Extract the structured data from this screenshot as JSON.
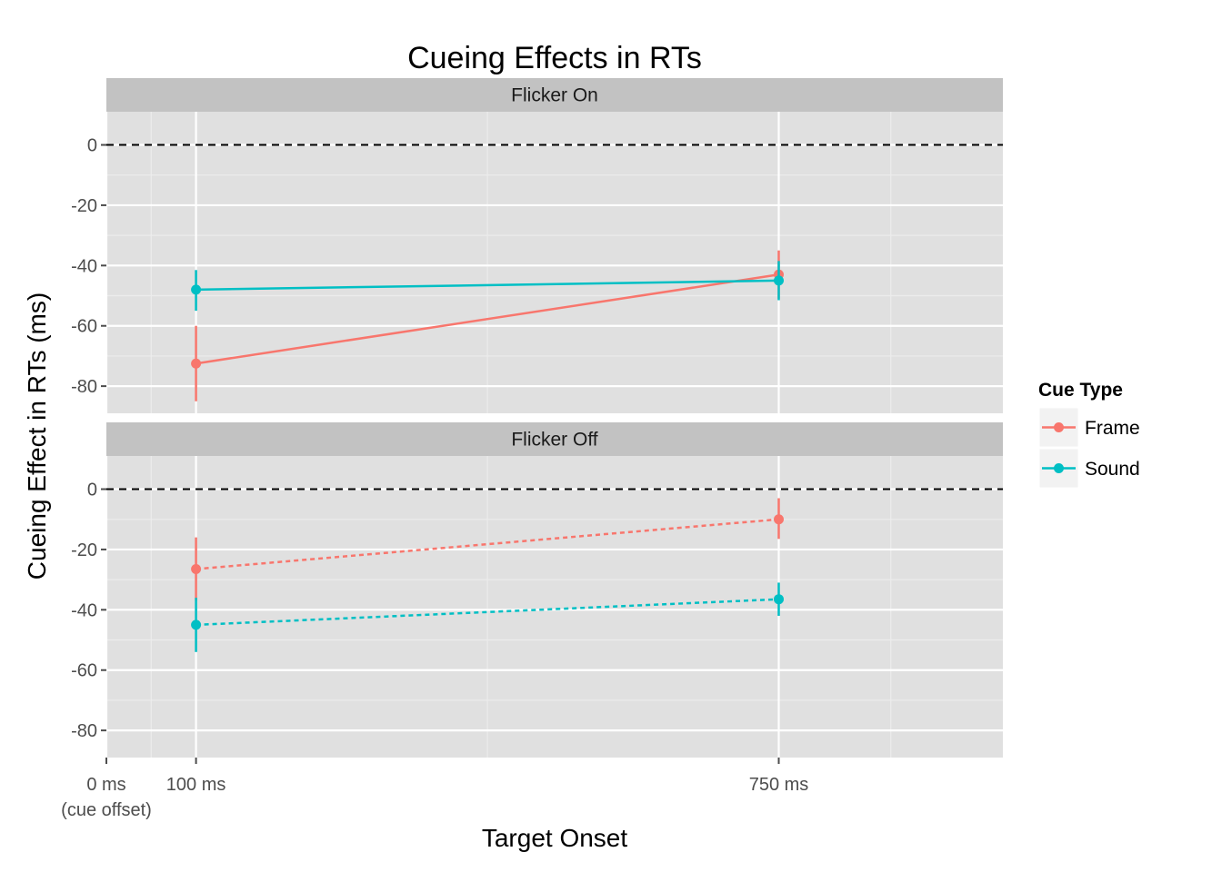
{
  "chart_data": {
    "type": "line",
    "title": "Cueing Effects in RTs",
    "xlabel": "Target Onset",
    "ylabel": "Cueing Effect in RTs (ms)",
    "x_ticks": [
      {
        "value": 0,
        "label": "0 ms",
        "sublabel": "(cue offset)"
      },
      {
        "value": 100,
        "label": "100 ms",
        "sublabel": ""
      },
      {
        "value": 750,
        "label": "750 ms",
        "sublabel": ""
      }
    ],
    "xlim": [
      0,
      1000
    ],
    "ylim": [
      -89,
      11
    ],
    "y_ticks": [
      0,
      -20,
      -40,
      -60,
      -80
    ],
    "reference_line": 0,
    "grid": true,
    "legend": {
      "title": "Cue Type",
      "position": "right",
      "entries": [
        {
          "name": "Frame",
          "color": "#F8766D"
        },
        {
          "name": "Sound",
          "color": "#00BFC4"
        }
      ]
    },
    "panels": [
      {
        "strip": "Flicker On",
        "line_style": "solid",
        "series": [
          {
            "name": "Frame",
            "color": "#F8766D",
            "points": [
              {
                "x": 100,
                "y": -72.5,
                "lo": -85,
                "hi": -60
              },
              {
                "x": 750,
                "y": -43,
                "lo": -51,
                "hi": -35
              }
            ]
          },
          {
            "name": "Sound",
            "color": "#00BFC4",
            "points": [
              {
                "x": 100,
                "y": -48,
                "lo": -55,
                "hi": -41.5
              },
              {
                "x": 750,
                "y": -45,
                "lo": -51.5,
                "hi": -38.5
              }
            ]
          }
        ]
      },
      {
        "strip": "Flicker Off",
        "line_style": "dotted",
        "series": [
          {
            "name": "Frame",
            "color": "#F8766D",
            "points": [
              {
                "x": 100,
                "y": -26.5,
                "lo": -37,
                "hi": -16
              },
              {
                "x": 750,
                "y": -10,
                "lo": -16.5,
                "hi": -3
              }
            ]
          },
          {
            "name": "Sound",
            "color": "#00BFC4",
            "points": [
              {
                "x": 100,
                "y": -45,
                "lo": -54,
                "hi": -36
              },
              {
                "x": 750,
                "y": -36.5,
                "lo": -42,
                "hi": -31
              }
            ]
          }
        ]
      }
    ]
  }
}
